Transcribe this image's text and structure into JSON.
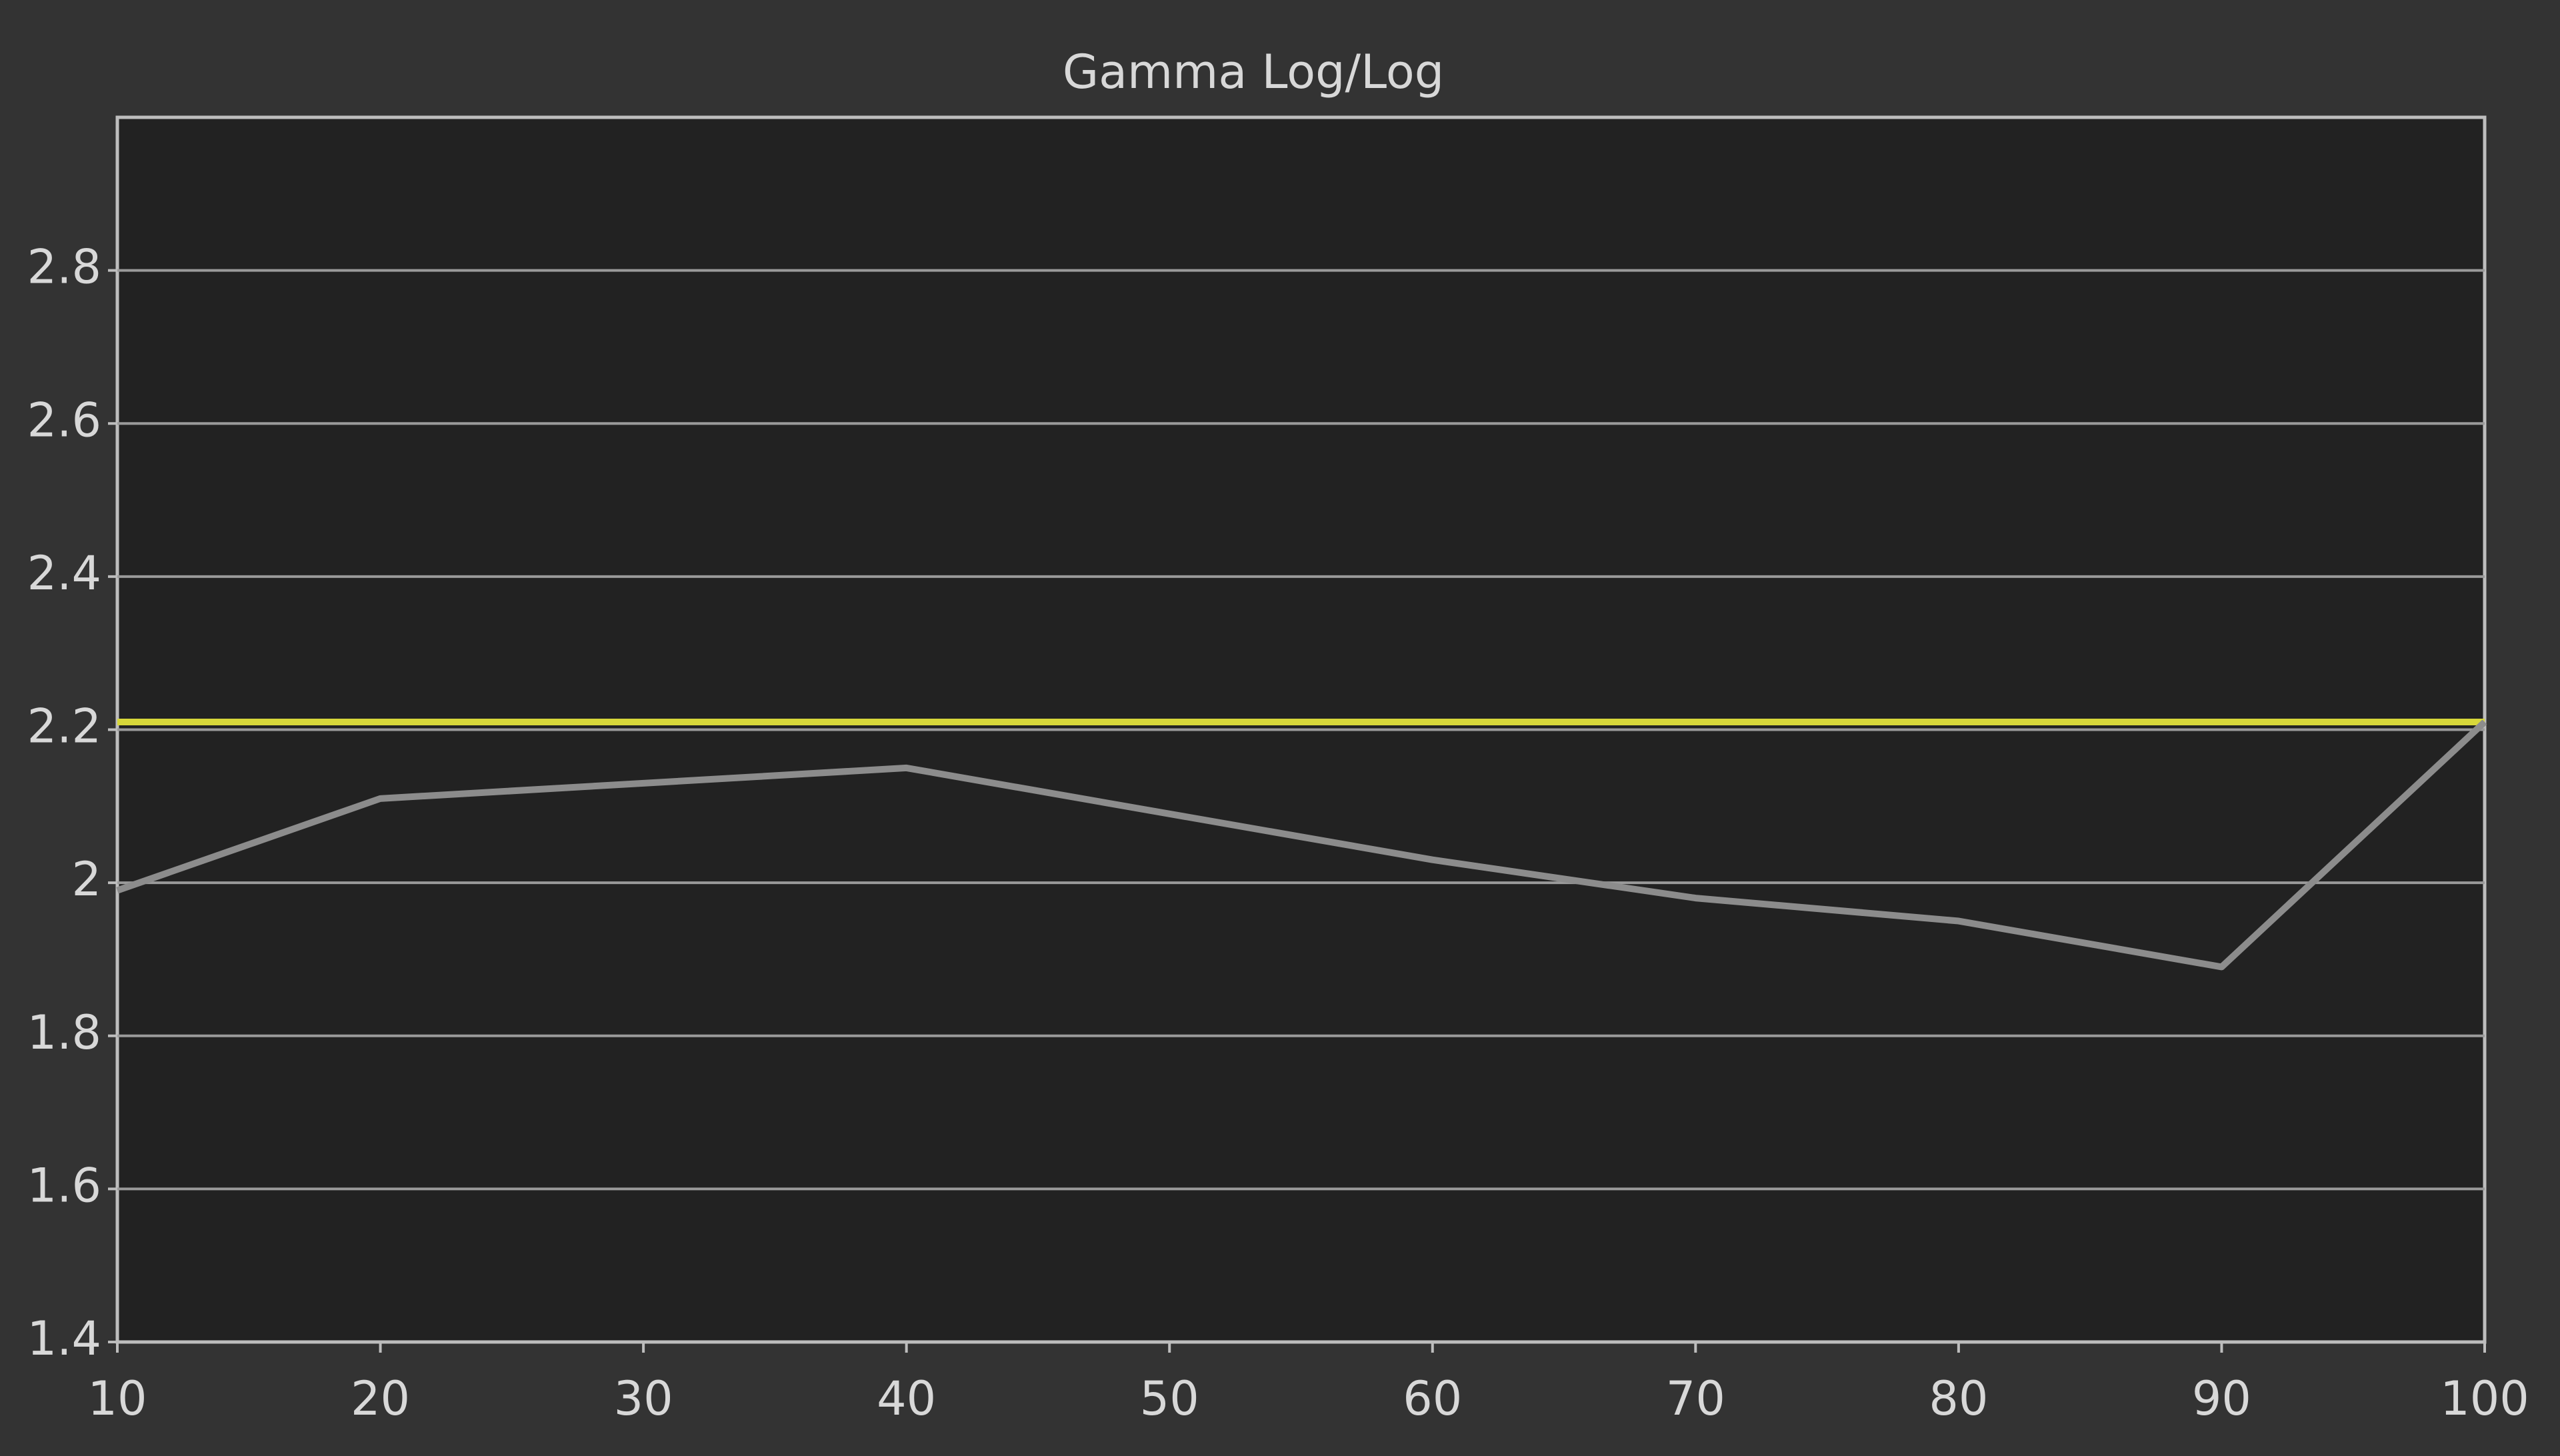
{
  "chart_data": {
    "type": "line",
    "title": "Gamma Log/Log",
    "x": [
      10,
      20,
      30,
      40,
      50,
      60,
      70,
      80,
      90,
      100
    ],
    "series": [
      {
        "color": "#d8d83a",
        "values": [
          2.21,
          2.21,
          2.21,
          2.21,
          2.21,
          2.21,
          2.21,
          2.21,
          2.21,
          2.21
        ]
      },
      {
        "color": "#8c8c8c",
        "values": [
          1.99,
          2.11,
          2.13,
          2.15,
          2.09,
          2.03,
          1.98,
          1.95,
          1.89,
          2.21
        ]
      }
    ],
    "xlim": [
      10,
      100
    ],
    "xticks": [
      10,
      20,
      30,
      40,
      50,
      60,
      70,
      80,
      90,
      100
    ],
    "ylim": [
      1.4,
      3.0
    ],
    "yticks": [
      1.4,
      1.6,
      1.8,
      2,
      2.2,
      2.4,
      2.6,
      2.8
    ],
    "grid": true
  }
}
